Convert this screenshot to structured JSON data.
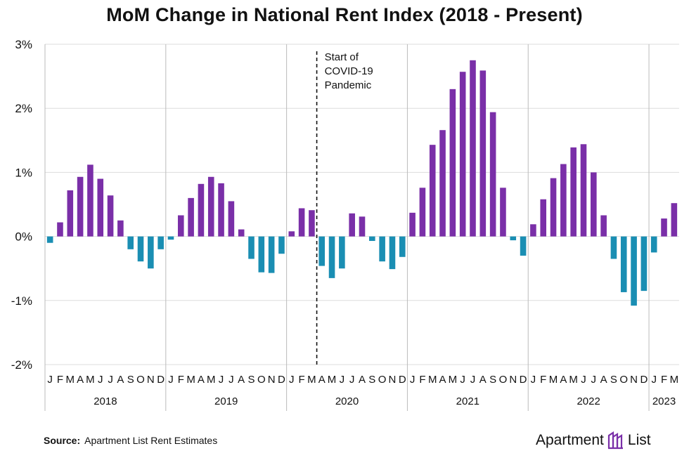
{
  "chart_data": {
    "type": "bar",
    "title": "MoM Change in National Rent Index (2018 - Present)",
    "ylim": [
      -2,
      3
    ],
    "yticks": [
      "3%",
      "2%",
      "1%",
      "0%",
      "-1%",
      "-2%"
    ],
    "y_values": [
      3,
      2,
      1,
      0,
      -1,
      -2
    ],
    "grid": "on",
    "colors": {
      "positive": "#7a2fa8",
      "negative": "#1a8eb3"
    },
    "years": [
      {
        "label": "2018",
        "months": [
          "J",
          "F",
          "M",
          "A",
          "M",
          "J",
          "J",
          "A",
          "S",
          "O",
          "N",
          "D"
        ]
      },
      {
        "label": "2019",
        "months": [
          "J",
          "F",
          "M",
          "A",
          "M",
          "J",
          "J",
          "A",
          "S",
          "O",
          "N",
          "D"
        ]
      },
      {
        "label": "2020",
        "months": [
          "J",
          "F",
          "M",
          "A",
          "M",
          "J",
          "J",
          "A",
          "S",
          "O",
          "N",
          "D"
        ]
      },
      {
        "label": "2021",
        "months": [
          "J",
          "F",
          "M",
          "A",
          "M",
          "J",
          "J",
          "A",
          "S",
          "O",
          "N",
          "D"
        ]
      },
      {
        "label": "2022",
        "months": [
          "J",
          "F",
          "M",
          "A",
          "M",
          "J",
          "J",
          "A",
          "S",
          "O",
          "N",
          "D"
        ]
      },
      {
        "label": "2023",
        "months": [
          "J",
          "F",
          "M"
        ]
      }
    ],
    "values": [
      -0.1,
      0.22,
      0.72,
      0.93,
      1.12,
      0.9,
      0.64,
      0.25,
      -0.2,
      -0.39,
      -0.5,
      -0.2,
      -0.05,
      0.33,
      0.6,
      0.82,
      0.93,
      0.83,
      0.55,
      0.11,
      -0.35,
      -0.56,
      -0.57,
      -0.27,
      0.08,
      0.44,
      0.41,
      -0.46,
      -0.65,
      -0.5,
      0.36,
      0.31,
      -0.07,
      -0.39,
      -0.51,
      -0.32,
      0.37,
      0.76,
      1.43,
      1.66,
      2.3,
      2.57,
      2.75,
      2.59,
      1.94,
      0.76,
      -0.06,
      -0.3,
      0.19,
      0.58,
      0.91,
      1.13,
      1.39,
      1.44,
      1.0,
      0.33,
      -0.35,
      -0.87,
      -1.08,
      -0.85,
      -0.25,
      0.28,
      0.52
    ],
    "annotation": {
      "lines": [
        "Start of",
        "COVID-19",
        "Pandemic"
      ],
      "after_index": 26
    }
  },
  "footer": {
    "source_label": "Source:",
    "source_text": "Apartment List Rent Estimates",
    "brand_left": "Apartment",
    "brand_right": "List"
  }
}
